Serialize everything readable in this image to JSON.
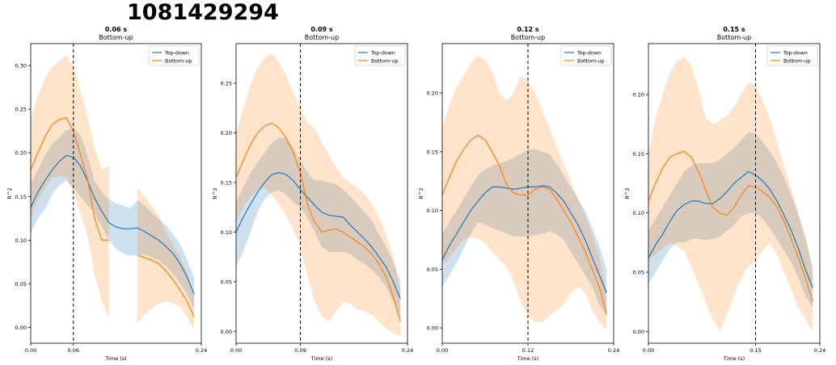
{
  "figure": {
    "title": "1081429294"
  },
  "colors": {
    "topdown": "#1f77b4",
    "bottomup": "#ff7f0e",
    "topdown_band": "#a9cce4",
    "bottomup_band": "#ffd3ad"
  },
  "chart_data": [
    {
      "type": "line",
      "title": "0.06 s",
      "subtitle": "Bottom-up",
      "xlabel": "Time (s)",
      "ylabel": "R^2",
      "xlim": [
        0,
        0.24
      ],
      "ylim": [
        -0.018,
        0.325
      ],
      "xticks": [
        0,
        0.06,
        0.24
      ],
      "xtick_labels": [
        "0.00",
        "0.06",
        "0.24"
      ],
      "yticks": [
        0,
        0.05,
        0.1,
        0.15,
        0.2,
        0.25,
        0.3
      ],
      "ytick_labels": [
        "0.00",
        "0.05",
        "0.10",
        "0.15",
        "0.20",
        "0.25",
        "0.30"
      ],
      "vline": 0.06,
      "legend": {
        "position": "top-right",
        "entries": [
          "Top-down",
          "Bottom-up"
        ]
      },
      "series": [
        {
          "name": "Top-down",
          "color": "#1f77b4",
          "x": [
            0,
            0.01,
            0.02,
            0.03,
            0.04,
            0.05,
            0.06,
            0.07,
            0.08,
            0.09,
            0.1,
            0.11,
            0.12,
            0.13,
            0.14,
            0.15,
            0.16,
            0.17,
            0.18,
            0.19,
            0.2,
            0.21,
            0.22,
            0.23
          ],
          "y": [
            0.137,
            0.155,
            0.168,
            0.18,
            0.19,
            0.197,
            0.195,
            0.185,
            0.168,
            0.148,
            0.133,
            0.12,
            0.115,
            0.113,
            0.113,
            0.114,
            0.11,
            0.105,
            0.1,
            0.093,
            0.085,
            0.073,
            0.058,
            0.038
          ],
          "lower": [
            0.108,
            0.125,
            0.135,
            0.152,
            0.163,
            0.168,
            0.16,
            0.15,
            0.14,
            0.13,
            0.115,
            0.1,
            0.09,
            0.085,
            0.082,
            0.083,
            0.084,
            0.08,
            0.077,
            0.07,
            0.062,
            0.05,
            0.038,
            0.02
          ],
          "upper": [
            0.165,
            0.18,
            0.197,
            0.21,
            0.218,
            0.226,
            0.228,
            0.22,
            0.197,
            0.168,
            0.155,
            0.147,
            0.142,
            0.14,
            0.136,
            0.146,
            0.14,
            0.132,
            0.124,
            0.117,
            0.107,
            0.096,
            0.078,
            0.057
          ]
        },
        {
          "name": "Bottom-up",
          "color": "#ff7f0e",
          "segments": [
            {
              "x": [
                0,
                0.01,
                0.02,
                0.03,
                0.04,
                0.05,
                0.06,
                0.07,
                0.08,
                0.09,
                0.1,
                0.11
              ],
              "y": [
                0.18,
                0.2,
                0.218,
                0.232,
                0.238,
                0.24,
                0.225,
                0.198,
                0.17,
                0.125,
                0.1,
                0.1
              ],
              "lower": [
                0.125,
                0.145,
                0.16,
                0.17,
                0.173,
                0.172,
                0.155,
                0.13,
                0.105,
                0.06,
                0.03,
                0.012
              ],
              "upper": [
                0.24,
                0.265,
                0.285,
                0.298,
                0.305,
                0.312,
                0.298,
                0.272,
                0.24,
                0.205,
                0.18,
                0.185
              ]
            },
            {
              "x": [
                0.15,
                0.16,
                0.17,
                0.18,
                0.19,
                0.2,
                0.21,
                0.22,
                0.23
              ],
              "y": [
                0.083,
                0.08,
                0.077,
                0.073,
                0.065,
                0.055,
                0.043,
                0.03,
                0.012
              ],
              "lower": [
                0.005,
                0.015,
                0.022,
                0.027,
                0.03,
                0.028,
                0.024,
                0.012,
                -0.003
              ],
              "upper": [
                0.16,
                0.15,
                0.14,
                0.128,
                0.11,
                0.095,
                0.08,
                0.063,
                0.035
              ]
            }
          ]
        }
      ]
    },
    {
      "type": "line",
      "title": "0.09 s",
      "subtitle": "Bottom-up",
      "xlabel": "Time (s)",
      "ylabel": "R^2",
      "xlim": [
        0,
        0.24
      ],
      "ylim": [
        -0.012,
        0.29
      ],
      "xticks": [
        0,
        0.09,
        0.24
      ],
      "xtick_labels": [
        "0.00",
        "0.09",
        "0.24"
      ],
      "yticks": [
        0,
        0.05,
        0.1,
        0.15,
        0.2,
        0.25
      ],
      "ytick_labels": [
        "0.00",
        "0.05",
        "0.10",
        "0.15",
        "0.20",
        "0.25"
      ],
      "vline": 0.09,
      "legend": {
        "position": "top-right",
        "entries": [
          "Top-down",
          "Bottom-up"
        ]
      },
      "series": [
        {
          "name": "Top-down",
          "color": "#1f77b4",
          "x": [
            0,
            0.01,
            0.02,
            0.03,
            0.04,
            0.05,
            0.06,
            0.07,
            0.08,
            0.09,
            0.1,
            0.11,
            0.12,
            0.13,
            0.14,
            0.15,
            0.16,
            0.17,
            0.18,
            0.19,
            0.2,
            0.21,
            0.22,
            0.23
          ],
          "y": [
            0.1,
            0.115,
            0.128,
            0.14,
            0.15,
            0.158,
            0.16,
            0.158,
            0.152,
            0.143,
            0.135,
            0.127,
            0.12,
            0.117,
            0.116,
            0.115,
            0.107,
            0.1,
            0.093,
            0.085,
            0.075,
            0.065,
            0.05,
            0.033
          ],
          "lower": [
            0.065,
            0.08,
            0.1,
            0.12,
            0.133,
            0.14,
            0.142,
            0.138,
            0.13,
            0.125,
            0.115,
            0.1,
            0.085,
            0.08,
            0.08,
            0.08,
            0.078,
            0.072,
            0.068,
            0.062,
            0.055,
            0.045,
            0.03,
            0.015
          ],
          "upper": [
            0.13,
            0.145,
            0.16,
            0.17,
            0.18,
            0.19,
            0.195,
            0.195,
            0.185,
            0.172,
            0.16,
            0.152,
            0.152,
            0.15,
            0.148,
            0.143,
            0.136,
            0.128,
            0.12,
            0.112,
            0.098,
            0.085,
            0.07,
            0.052
          ]
        },
        {
          "name": "Bottom-up",
          "color": "#ff7f0e",
          "x": [
            0,
            0.01,
            0.02,
            0.03,
            0.04,
            0.05,
            0.06,
            0.07,
            0.08,
            0.09,
            0.1,
            0.11,
            0.12,
            0.13,
            0.14,
            0.15,
            0.16,
            0.17,
            0.18,
            0.19,
            0.2,
            0.21,
            0.22,
            0.23
          ],
          "y": [
            0.155,
            0.172,
            0.188,
            0.2,
            0.207,
            0.21,
            0.205,
            0.195,
            0.18,
            0.16,
            0.128,
            0.11,
            0.1,
            0.102,
            0.103,
            0.1,
            0.095,
            0.09,
            0.085,
            0.078,
            0.068,
            0.055,
            0.035,
            0.01
          ],
          "lower": [
            0.11,
            0.125,
            0.135,
            0.143,
            0.145,
            0.138,
            0.128,
            0.117,
            0.103,
            0.085,
            0.055,
            0.03,
            0.015,
            0.01,
            0.02,
            0.03,
            0.028,
            0.022,
            0.02,
            0.017,
            0.01,
            0.003,
            -0.002,
            -0.005
          ],
          "upper": [
            0.2,
            0.225,
            0.248,
            0.266,
            0.276,
            0.28,
            0.272,
            0.258,
            0.24,
            0.225,
            0.21,
            0.205,
            0.19,
            0.178,
            0.165,
            0.155,
            0.15,
            0.145,
            0.138,
            0.128,
            0.115,
            0.098,
            0.075,
            0.04
          ]
        }
      ]
    },
    {
      "type": "line",
      "title": "0.12 s",
      "subtitle": "Bottom-up",
      "xlabel": "Time (s)",
      "ylabel": "R^2",
      "xlim": [
        0,
        0.24
      ],
      "ylim": [
        -0.013,
        0.242
      ],
      "xticks": [
        0,
        0.12,
        0.24
      ],
      "xtick_labels": [
        "0.00",
        "0.12",
        "0.24"
      ],
      "yticks": [
        0,
        0.05,
        0.1,
        0.15,
        0.2
      ],
      "ytick_labels": [
        "0.00",
        "0.05",
        "0.10",
        "0.15",
        "0.20"
      ],
      "vline": 0.12,
      "legend": {
        "position": "top-right",
        "entries": [
          "Top-down",
          "Bottom-up"
        ]
      },
      "series": [
        {
          "name": "Top-down",
          "color": "#1f77b4",
          "x": [
            0,
            0.01,
            0.02,
            0.03,
            0.04,
            0.05,
            0.06,
            0.07,
            0.08,
            0.09,
            0.1,
            0.11,
            0.12,
            0.13,
            0.14,
            0.15,
            0.16,
            0.17,
            0.18,
            0.19,
            0.2,
            0.21,
            0.22,
            0.23
          ],
          "y": [
            0.058,
            0.07,
            0.08,
            0.09,
            0.1,
            0.108,
            0.115,
            0.12,
            0.12,
            0.119,
            0.118,
            0.119,
            0.12,
            0.12,
            0.121,
            0.12,
            0.115,
            0.108,
            0.098,
            0.088,
            0.075,
            0.06,
            0.045,
            0.03
          ],
          "lower": [
            0.035,
            0.045,
            0.055,
            0.068,
            0.08,
            0.09,
            0.088,
            0.085,
            0.083,
            0.08,
            0.078,
            0.078,
            0.078,
            0.079,
            0.08,
            0.082,
            0.08,
            0.075,
            0.065,
            0.055,
            0.045,
            0.035,
            0.02,
            0.01
          ],
          "upper": [
            0.08,
            0.09,
            0.1,
            0.11,
            0.12,
            0.13,
            0.135,
            0.138,
            0.14,
            0.142,
            0.145,
            0.148,
            0.152,
            0.152,
            0.15,
            0.148,
            0.14,
            0.13,
            0.12,
            0.11,
            0.1,
            0.085,
            0.07,
            0.05
          ]
        },
        {
          "name": "Bottom-up",
          "color": "#ff7f0e",
          "x": [
            0,
            0.01,
            0.02,
            0.03,
            0.04,
            0.05,
            0.06,
            0.07,
            0.08,
            0.09,
            0.1,
            0.11,
            0.12,
            0.13,
            0.14,
            0.15,
            0.16,
            0.17,
            0.18,
            0.19,
            0.2,
            0.21,
            0.22,
            0.23
          ],
          "y": [
            0.113,
            0.128,
            0.142,
            0.152,
            0.16,
            0.164,
            0.16,
            0.15,
            0.138,
            0.122,
            0.115,
            0.113,
            0.113,
            0.118,
            0.12,
            0.118,
            0.11,
            0.1,
            0.09,
            0.078,
            0.065,
            0.05,
            0.035,
            0.012
          ],
          "lower": [
            0.055,
            0.06,
            0.068,
            0.075,
            0.078,
            0.076,
            0.072,
            0.065,
            0.058,
            0.052,
            0.04,
            0.022,
            0.01,
            0.005,
            0.005,
            0.01,
            0.015,
            0.02,
            0.03,
            0.035,
            0.03,
            0.015,
            0.005,
            -0.002
          ],
          "upper": [
            0.17,
            0.19,
            0.205,
            0.215,
            0.225,
            0.232,
            0.228,
            0.218,
            0.2,
            0.193,
            0.2,
            0.215,
            0.21,
            0.2,
            0.185,
            0.17,
            0.155,
            0.14,
            0.125,
            0.11,
            0.095,
            0.08,
            0.06,
            0.03
          ]
        }
      ]
    },
    {
      "type": "line",
      "title": "0.15 s",
      "subtitle": "Bottom-up",
      "xlabel": "Time (s)",
      "ylabel": "R^2",
      "xlim": [
        0,
        0.24
      ],
      "ylim": [
        -0.01,
        0.243
      ],
      "xticks": [
        0,
        0.15,
        0.24
      ],
      "xtick_labels": [
        "0.00",
        "0.15",
        "0.24"
      ],
      "yticks": [
        0,
        0.05,
        0.1,
        0.15,
        0.2
      ],
      "ytick_labels": [
        "0.00",
        "0.05",
        "0.10",
        "0.15",
        "0.20"
      ],
      "vline": 0.15,
      "legend": {
        "position": "top-right",
        "entries": [
          "Top-down",
          "Bottom-up"
        ]
      },
      "series": [
        {
          "name": "Top-down",
          "color": "#1f77b4",
          "x": [
            0,
            0.01,
            0.02,
            0.03,
            0.04,
            0.05,
            0.06,
            0.07,
            0.08,
            0.09,
            0.1,
            0.11,
            0.12,
            0.13,
            0.14,
            0.15,
            0.16,
            0.17,
            0.18,
            0.19,
            0.2,
            0.21,
            0.22,
            0.23
          ],
          "y": [
            0.062,
            0.073,
            0.082,
            0.093,
            0.102,
            0.107,
            0.11,
            0.11,
            0.108,
            0.108,
            0.112,
            0.118,
            0.125,
            0.13,
            0.135,
            0.132,
            0.127,
            0.12,
            0.11,
            0.098,
            0.085,
            0.07,
            0.052,
            0.037
          ],
          "lower": [
            0.04,
            0.05,
            0.06,
            0.07,
            0.075,
            0.075,
            0.078,
            0.078,
            0.077,
            0.078,
            0.08,
            0.085,
            0.09,
            0.097,
            0.1,
            0.1,
            0.095,
            0.087,
            0.078,
            0.068,
            0.058,
            0.045,
            0.03,
            0.02
          ],
          "upper": [
            0.085,
            0.095,
            0.105,
            0.115,
            0.125,
            0.135,
            0.14,
            0.142,
            0.142,
            0.142,
            0.145,
            0.15,
            0.155,
            0.162,
            0.168,
            0.167,
            0.16,
            0.152,
            0.142,
            0.13,
            0.115,
            0.098,
            0.078,
            0.055
          ]
        },
        {
          "name": "Bottom-up",
          "color": "#ff7f0e",
          "x": [
            0,
            0.01,
            0.02,
            0.03,
            0.04,
            0.05,
            0.06,
            0.07,
            0.08,
            0.09,
            0.1,
            0.11,
            0.12,
            0.13,
            0.14,
            0.15,
            0.16,
            0.17,
            0.18,
            0.19,
            0.2,
            0.21,
            0.22,
            0.23
          ],
          "y": [
            0.11,
            0.125,
            0.138,
            0.147,
            0.15,
            0.152,
            0.147,
            0.135,
            0.12,
            0.105,
            0.1,
            0.098,
            0.105,
            0.115,
            0.123,
            0.122,
            0.118,
            0.113,
            0.105,
            0.093,
            0.078,
            0.062,
            0.045,
            0.025
          ],
          "lower": [
            0.06,
            0.065,
            0.07,
            0.075,
            0.072,
            0.068,
            0.055,
            0.04,
            0.025,
            0.01,
            0.0,
            0.015,
            0.03,
            0.045,
            0.055,
            0.06,
            0.068,
            0.075,
            0.065,
            0.05,
            0.035,
            0.02,
            0.01,
            0.0
          ],
          "upper": [
            0.15,
            0.18,
            0.2,
            0.218,
            0.228,
            0.232,
            0.225,
            0.205,
            0.18,
            0.175,
            0.178,
            0.182,
            0.19,
            0.2,
            0.21,
            0.208,
            0.195,
            0.18,
            0.16,
            0.14,
            0.12,
            0.1,
            0.08,
            0.05
          ]
        }
      ]
    }
  ]
}
